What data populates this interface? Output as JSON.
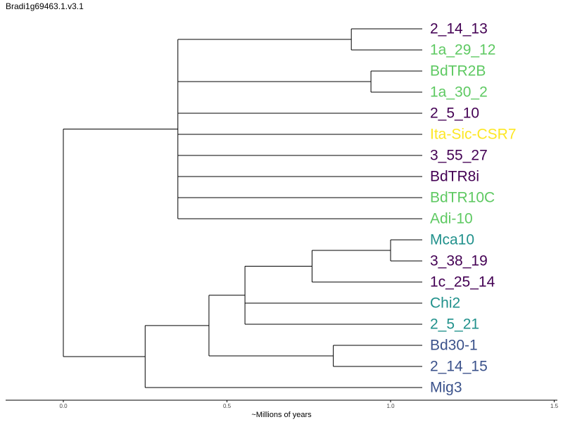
{
  "title": "Bradi1g69463.1.v3.1",
  "axis": {
    "label": "~Millions of years",
    "ticks": [
      {
        "value": 0.0,
        "label": "0.0"
      },
      {
        "value": 0.5,
        "label": "0.5"
      },
      {
        "value": 1.0,
        "label": "1.0"
      },
      {
        "value": 1.5,
        "label": "1.5"
      }
    ],
    "range": [
      -0.18,
      1.5
    ]
  },
  "colors": {
    "purple": "#440154",
    "green": "#5ec962",
    "yellow": "#fde725",
    "teal": "#21918c",
    "blue": "#3b528b",
    "line": "#000000"
  },
  "leaves": [
    {
      "name": "2_14_13",
      "color": "#440154"
    },
    {
      "name": "1a_29_12",
      "color": "#5ec962"
    },
    {
      "name": "BdTR2B",
      "color": "#5ec962"
    },
    {
      "name": "1a_30_2",
      "color": "#5ec962"
    },
    {
      "name": "2_5_10",
      "color": "#440154"
    },
    {
      "name": "Ita-Sic-CSR7",
      "color": "#fde725"
    },
    {
      "name": "3_55_27",
      "color": "#440154"
    },
    {
      "name": "BdTR8i",
      "color": "#440154"
    },
    {
      "name": "BdTR10C",
      "color": "#5ec962"
    },
    {
      "name": "Adi-10",
      "color": "#5ec962"
    },
    {
      "name": "Mca10",
      "color": "#21918c"
    },
    {
      "name": "3_38_19",
      "color": "#440154"
    },
    {
      "name": "1c_25_14",
      "color": "#440154"
    },
    {
      "name": "Chi2",
      "color": "#21918c"
    },
    {
      "name": "2_5_21",
      "color": "#21918c"
    },
    {
      "name": "Bd30-1",
      "color": "#3b528b"
    },
    {
      "name": "2_14_15",
      "color": "#3b528b"
    },
    {
      "name": "Mig3",
      "color": "#3b528b"
    }
  ],
  "tree": {
    "h": 0.0,
    "children": [
      {
        "h": 0.35,
        "children": [
          {
            "h": 0.88,
            "children": [
              {
                "leaf": 0
              },
              {
                "leaf": 1
              }
            ]
          },
          {
            "h": 0.94,
            "children": [
              {
                "leaf": 2
              },
              {
                "leaf": 3
              }
            ]
          },
          {
            "leaf": 4
          },
          {
            "leaf": 5
          },
          {
            "leaf": 6
          },
          {
            "leaf": 7
          },
          {
            "leaf": 8
          },
          {
            "leaf": 9
          }
        ]
      },
      {
        "h": 0.25,
        "children": [
          {
            "h": 0.445,
            "children": [
              {
                "h": 0.555,
                "children": [
                  {
                    "h": 0.76,
                    "children": [
                      {
                        "h": 1.0,
                        "children": [
                          {
                            "leaf": 10
                          },
                          {
                            "leaf": 11
                          }
                        ]
                      },
                      {
                        "leaf": 12
                      }
                    ]
                  },
                  {
                    "leaf": 13
                  },
                  {
                    "leaf": 14
                  }
                ]
              },
              {
                "h": 0.825,
                "children": [
                  {
                    "leaf": 15
                  },
                  {
                    "leaf": 16
                  }
                ]
              }
            ]
          },
          {
            "leaf": 17
          }
        ]
      }
    ]
  }
}
